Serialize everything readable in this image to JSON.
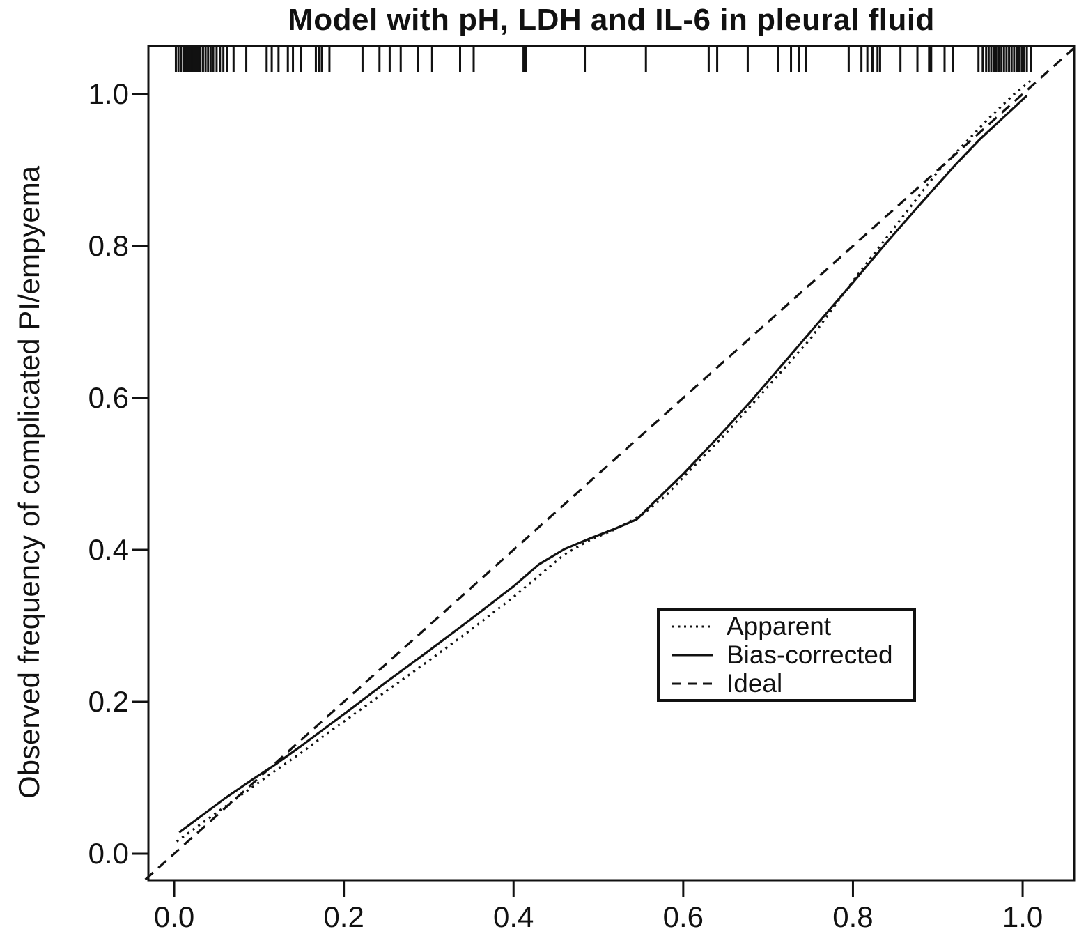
{
  "chart_data": {
    "type": "line",
    "title": "Model with pH, LDH and IL-6 in pleural fluid",
    "xlabel": "",
    "ylabel": "Observed frequency of complicated PI/empyema",
    "xlim": [
      -0.0304,
      1.0607
    ],
    "ylim": [
      -0.0349,
      1.0633
    ],
    "grid": false,
    "legend_position": "inside lower right",
    "x_ticks": {
      "values": [
        0.0,
        0.2,
        0.4,
        0.6,
        0.8,
        1.0
      ],
      "labels": [
        "0.0",
        "0.2",
        "0.4",
        "0.6",
        "0.8",
        "1.0"
      ]
    },
    "y_ticks": {
      "values": [
        0.0,
        0.2,
        0.4,
        0.6,
        0.8,
        1.0
      ],
      "labels": [
        "0.0",
        "0.2",
        "0.4",
        "0.6",
        "0.8",
        "1.0"
      ]
    },
    "series": [
      {
        "name": "Apparent",
        "style": "dotted",
        "points": [
          [
            0.003,
            0.016
          ],
          [
            0.03,
            0.038
          ],
          [
            0.06,
            0.062
          ],
          [
            0.09,
            0.086
          ],
          [
            0.12,
            0.11
          ],
          [
            0.15,
            0.133
          ],
          [
            0.18,
            0.158
          ],
          [
            0.21,
            0.182
          ],
          [
            0.25,
            0.214
          ],
          [
            0.3,
            0.254
          ],
          [
            0.35,
            0.295
          ],
          [
            0.4,
            0.338
          ],
          [
            0.43,
            0.366
          ],
          [
            0.46,
            0.394
          ],
          [
            0.49,
            0.413
          ],
          [
            0.52,
            0.427
          ],
          [
            0.55,
            0.445
          ],
          [
            0.58,
            0.472
          ],
          [
            0.61,
            0.507
          ],
          [
            0.65,
            0.553
          ],
          [
            0.7,
            0.615
          ],
          [
            0.75,
            0.678
          ],
          [
            0.8,
            0.754
          ],
          [
            0.85,
            0.826
          ],
          [
            0.9,
            0.898
          ],
          [
            0.93,
            0.933
          ],
          [
            0.96,
            0.968
          ],
          [
            0.99,
            1.0
          ],
          [
            1.01,
            1.018
          ]
        ]
      },
      {
        "name": "Bias-corrected",
        "style": "solid",
        "points": [
          [
            0.006,
            0.028
          ],
          [
            0.03,
            0.048
          ],
          [
            0.06,
            0.073
          ],
          [
            0.09,
            0.096
          ],
          [
            0.12,
            0.118
          ],
          [
            0.15,
            0.142
          ],
          [
            0.18,
            0.167
          ],
          [
            0.21,
            0.192
          ],
          [
            0.25,
            0.226
          ],
          [
            0.3,
            0.267
          ],
          [
            0.35,
            0.309
          ],
          [
            0.4,
            0.352
          ],
          [
            0.43,
            0.381
          ],
          [
            0.46,
            0.401
          ],
          [
            0.49,
            0.415
          ],
          [
            0.52,
            0.428
          ],
          [
            0.545,
            0.44
          ],
          [
            0.565,
            0.462
          ],
          [
            0.6,
            0.5
          ],
          [
            0.64,
            0.547
          ],
          [
            0.68,
            0.596
          ],
          [
            0.72,
            0.648
          ],
          [
            0.76,
            0.7
          ],
          [
            0.8,
            0.752
          ],
          [
            0.84,
            0.805
          ],
          [
            0.88,
            0.856
          ],
          [
            0.92,
            0.906
          ],
          [
            0.95,
            0.941
          ],
          [
            0.98,
            0.972
          ],
          [
            1.005,
            0.998
          ]
        ]
      },
      {
        "name": "Ideal",
        "style": "dashed",
        "points": [
          [
            -0.034,
            -0.034
          ],
          [
            1.062,
            1.062
          ]
        ]
      }
    ],
    "rug": {
      "position": "top",
      "x": [
        0.002,
        0.005,
        0.008,
        0.011,
        0.013,
        0.015,
        0.017,
        0.019,
        0.021,
        0.023,
        0.025,
        0.027,
        0.029,
        0.031,
        0.034,
        0.037,
        0.04,
        0.043,
        0.046,
        0.05,
        0.054,
        0.058,
        0.062,
        0.07,
        0.085,
        0.109,
        0.115,
        0.123,
        0.134,
        0.14,
        0.149,
        0.167,
        0.171,
        0.174,
        0.183,
        0.222,
        0.242,
        0.254,
        0.267,
        0.287,
        0.304,
        0.337,
        0.353,
        0.413,
        0.484,
        0.556,
        0.63,
        0.64,
        0.676,
        0.712,
        0.727,
        0.736,
        0.745,
        0.795,
        0.81,
        0.817,
        0.823,
        0.829,
        0.832,
        0.856,
        0.876,
        0.891,
        0.908,
        0.918,
        0.948,
        0.953,
        0.957,
        0.96,
        0.963,
        0.966,
        0.969,
        0.972,
        0.975,
        0.978,
        0.981,
        0.984,
        0.987,
        0.99,
        0.993,
        0.996,
        0.999,
        1.002,
        1.005,
        1.01
      ],
      "bold_x": [
        0.413,
        0.891
      ]
    },
    "colors": {
      "foreground": "#111111",
      "background": "#ffffff"
    }
  }
}
